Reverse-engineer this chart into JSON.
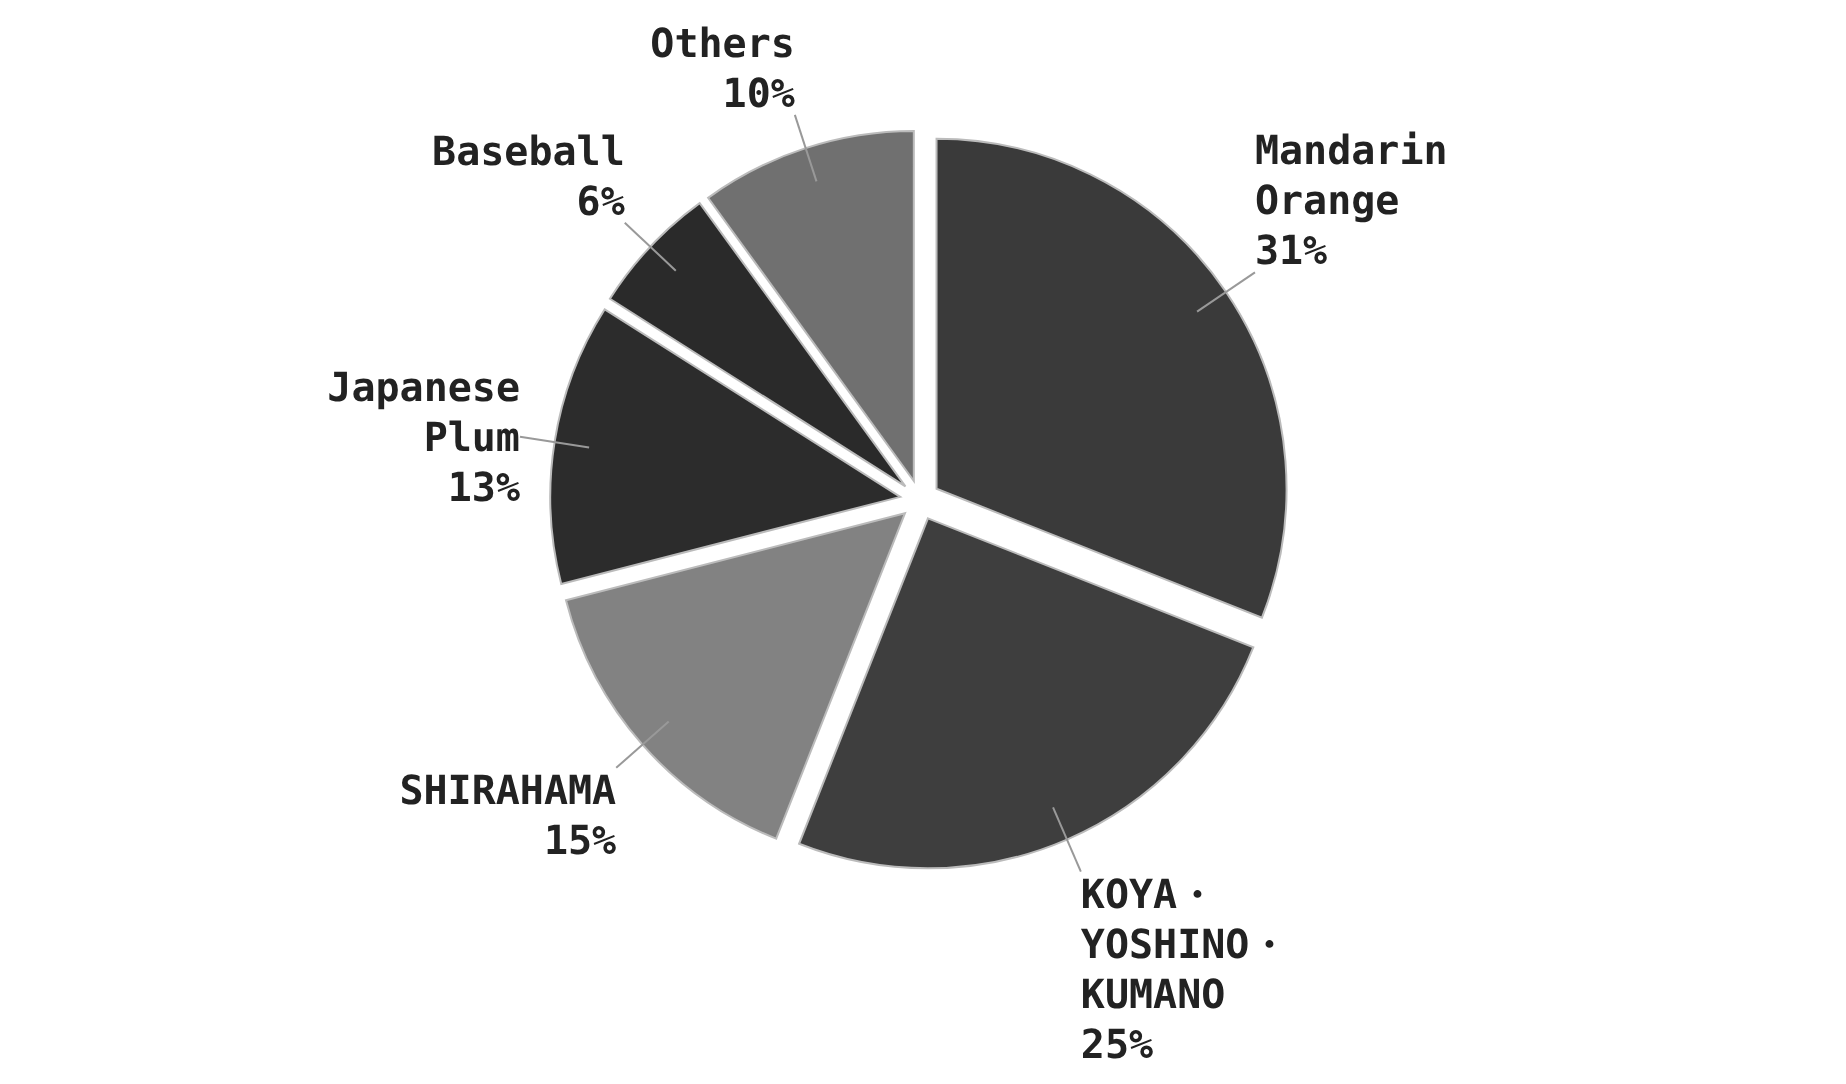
{
  "chart_data": {
    "type": "pie",
    "categories": [
      "Mandarin Orange",
      "KOYA・YOSHINO・KUMANO",
      "SHIRAHAMA",
      "Japanese Plum",
      "Baseball",
      "Others"
    ],
    "values": [
      31,
      25,
      15,
      13,
      6,
      10
    ],
    "value_labels": [
      "31%",
      "25%",
      "15%",
      "13%",
      "6%",
      "10%"
    ],
    "colors": [
      "#3a3a3a",
      "#3e3e3e",
      "#828282",
      "#2c2c2c",
      "#2a2a2a",
      "#707070"
    ]
  }
}
